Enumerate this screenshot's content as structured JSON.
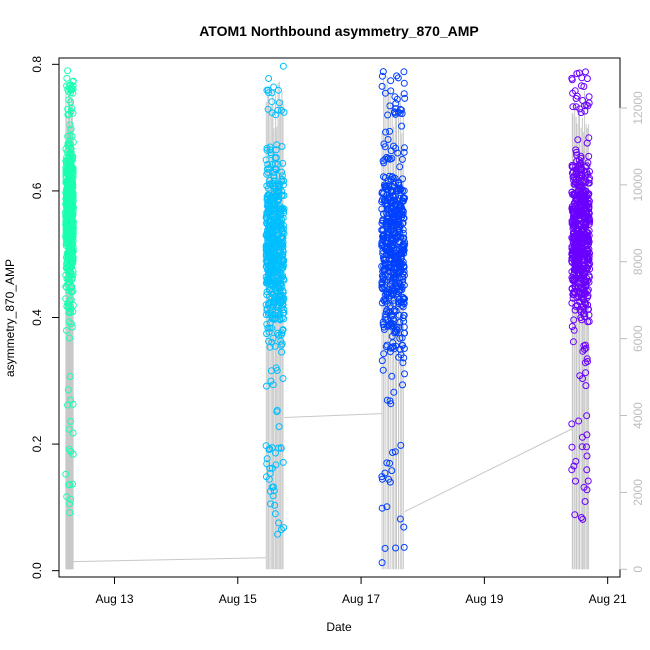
{
  "chart_data": {
    "type": "scatter",
    "title": "ATOM1 Northbound asymmetry_870_AMP",
    "xlabel": "Date",
    "ylabel": "asymmetry_870_AMP",
    "x_ticks": [
      "Aug 13",
      "Aug 15",
      "Aug 17",
      "Aug 19",
      "Aug 21"
    ],
    "xlim_days": [
      12.1,
      21.2
    ],
    "ylim": [
      -0.01,
      0.81
    ],
    "y_ticks": [
      "0.0",
      "0.2",
      "0.4",
      "0.6",
      "0.8"
    ],
    "y2_ticks": [
      "0",
      "2000",
      "4000",
      "6000",
      "8000",
      "10000",
      "12000"
    ],
    "y2lim": [
      -200,
      13300
    ],
    "grid": false,
    "series": [
      {
        "color": "#1AFFB0",
        "x_range": [
          "Aug 12 05:00",
          "Aug 12 08:00"
        ],
        "y_core": [
          0.32,
          0.72
        ],
        "y_extremes": [
          0.09,
          0.79
        ],
        "secondary_start": 0,
        "secondary_end": 200
      },
      {
        "color": "#00BFFF",
        "x_range": [
          "Aug 15 11:00",
          "Aug 15 18:00"
        ],
        "y_core": [
          0.2,
          0.72
        ],
        "y_extremes": [
          0.05,
          0.8
        ],
        "secondary_start": 300,
        "secondary_end": 3950
      },
      {
        "color": "#0040FF",
        "x_range": [
          "Aug 17 08:00",
          "Aug 17 17:00"
        ],
        "y_core": [
          0.2,
          0.72
        ],
        "y_extremes": [
          0.01,
          0.79
        ],
        "secondary_start": 4050,
        "secondary_end": 1500
      },
      {
        "color": "#6A00FF",
        "x_range": [
          "Aug 20 10:00",
          "Aug 20 17:00"
        ],
        "y_core": [
          0.25,
          0.72
        ],
        "y_extremes": [
          0.07,
          0.79
        ],
        "secondary_start": 3650,
        "secondary_end": 200
      }
    ],
    "secondary_line_color": "#c8c8c8"
  }
}
